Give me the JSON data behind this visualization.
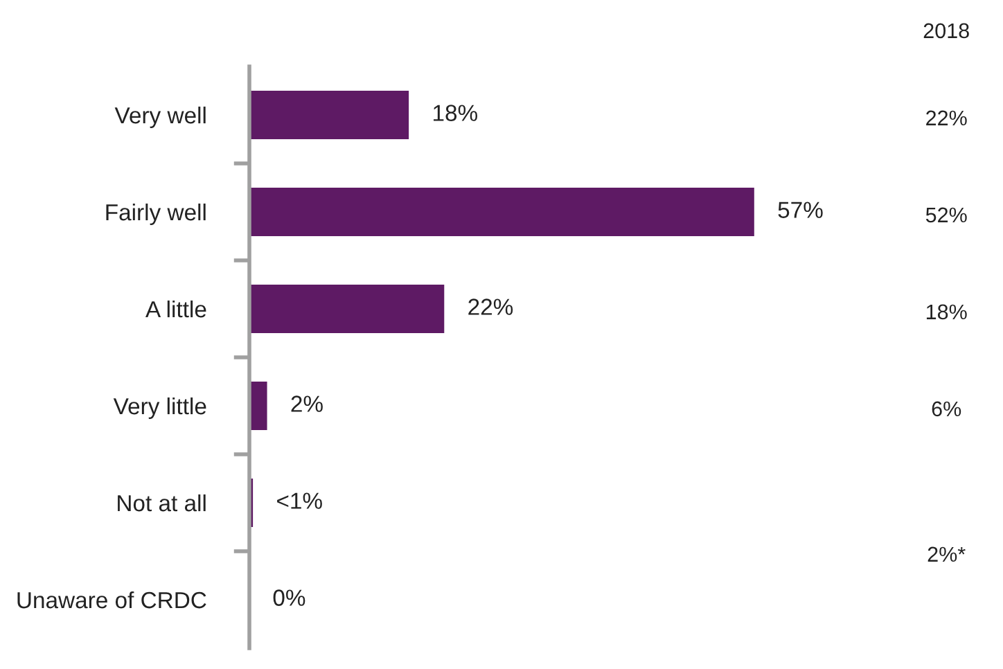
{
  "chart_data": {
    "type": "bar",
    "orientation": "horizontal",
    "categories": [
      "Very well",
      "Fairly well",
      "A little",
      "Very little",
      "Not at all",
      "Unaware of CRDC"
    ],
    "values": [
      18,
      57,
      22,
      2,
      0.4,
      0
    ],
    "value_labels": [
      "18%",
      "57%",
      "22%",
      "2%",
      "<1%",
      "0%"
    ],
    "color": "#5e1a64",
    "annotations": [
      "2018",
      "22%",
      "52%",
      "18%",
      "6%",
      "2%*"
    ]
  }
}
